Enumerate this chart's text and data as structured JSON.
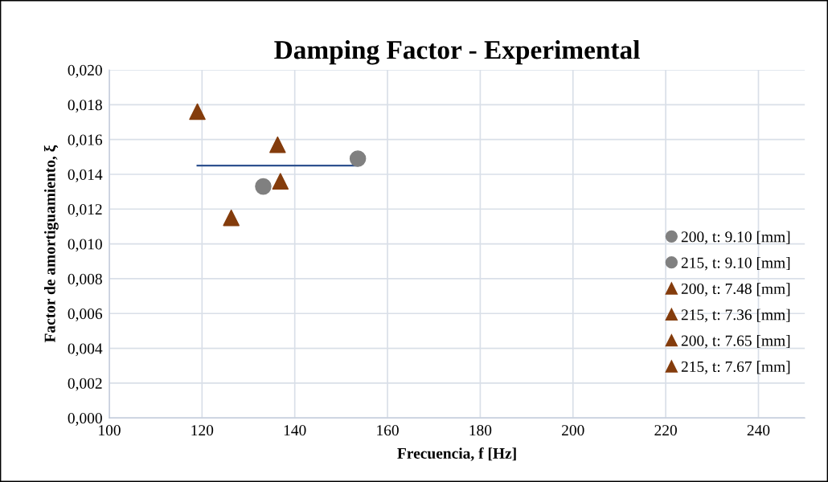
{
  "chart_data": {
    "type": "scatter",
    "title": "Damping Factor - Experimental",
    "xlabel": "Frecuencia, f [Hz]",
    "ylabel": "Factor de amortiguamiento, ξ",
    "xlim": [
      100,
      250
    ],
    "xticks": [
      100,
      120,
      140,
      160,
      180,
      200,
      220,
      240
    ],
    "ylim": [
      0,
      0.02
    ],
    "yticks": [
      {
        "value": 0,
        "label": "0,000"
      },
      {
        "value": 0.002,
        "label": "0,002"
      },
      {
        "value": 0.004,
        "label": "0,004"
      },
      {
        "value": 0.006,
        "label": "0,006"
      },
      {
        "value": 0.008,
        "label": "0,008"
      },
      {
        "value": 0.01,
        "label": "0,010"
      },
      {
        "value": 0.012,
        "label": "0,012"
      },
      {
        "value": 0.014,
        "label": "0,014"
      },
      {
        "value": 0.016,
        "label": "0,016"
      },
      {
        "value": 0.018,
        "label": "0,018"
      },
      {
        "value": 0.02,
        "label": "0,020"
      }
    ],
    "grid": true,
    "legend": "right",
    "series": [
      {
        "name": "200, t: 9.10 [mm]",
        "color": "#808080",
        "marker": "circle",
        "x": [
          133.2
        ],
        "values": [
          0.0133
        ]
      },
      {
        "name": "215, t: 9.10 [mm]",
        "color": "#808080",
        "marker": "circle",
        "x": [
          153.6
        ],
        "values": [
          0.0149
        ]
      },
      {
        "name": "200, t: 7.48 [mm]",
        "color": "#843c0c",
        "marker": "triangle",
        "x": [
          119.0
        ],
        "values": [
          0.0176
        ]
      },
      {
        "name": "215, t: 7.36 [mm]",
        "color": "#843c0c",
        "marker": "triangle",
        "x": [
          126.3
        ],
        "values": [
          0.0115
        ]
      },
      {
        "name": "200, t: 7.65 [mm]",
        "color": "#843c0c",
        "marker": "triangle",
        "x": [
          136.3
        ],
        "values": [
          0.0157
        ]
      },
      {
        "name": "215, t: 7.67 [mm]",
        "color": "#843c0c",
        "marker": "triangle",
        "x": [
          136.9
        ],
        "values": [
          0.0136
        ]
      },
      {
        "type": "line",
        "color": "#2f528f",
        "x": [
          119.0,
          153.6
        ],
        "values": [
          0.0145,
          0.0145
        ]
      }
    ]
  }
}
